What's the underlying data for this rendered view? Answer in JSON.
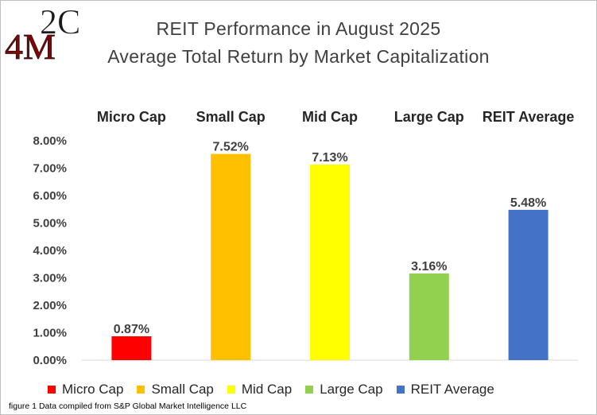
{
  "logo": {
    "text_top": "2C",
    "text_bottom": "4M"
  },
  "chart_data": {
    "type": "bar",
    "title": "REIT Performance in August 2025",
    "subtitle": "Average Total Return by Market Capitalization",
    "categories": [
      "Micro Cap",
      "Small Cap",
      "Mid Cap",
      "Large Cap",
      "REIT Average"
    ],
    "values": [
      0.87,
      7.52,
      7.13,
      3.16,
      5.48
    ],
    "data_labels": [
      "0.87%",
      "7.52%",
      "7.13%",
      "3.16%",
      "5.48%"
    ],
    "colors": [
      "#ff0000",
      "#ffc000",
      "#ffff00",
      "#92d050",
      "#4472c4"
    ],
    "ylim": [
      0,
      8
    ],
    "yticks": [
      "0.00%",
      "1.00%",
      "2.00%",
      "3.00%",
      "4.00%",
      "5.00%",
      "6.00%",
      "7.00%",
      "8.00%"
    ],
    "grid": false,
    "legend_position": "bottom",
    "category_labels_position": "top"
  },
  "footnote": "figure 1 Data compiled from S&P Global Market Intelligence LLC"
}
